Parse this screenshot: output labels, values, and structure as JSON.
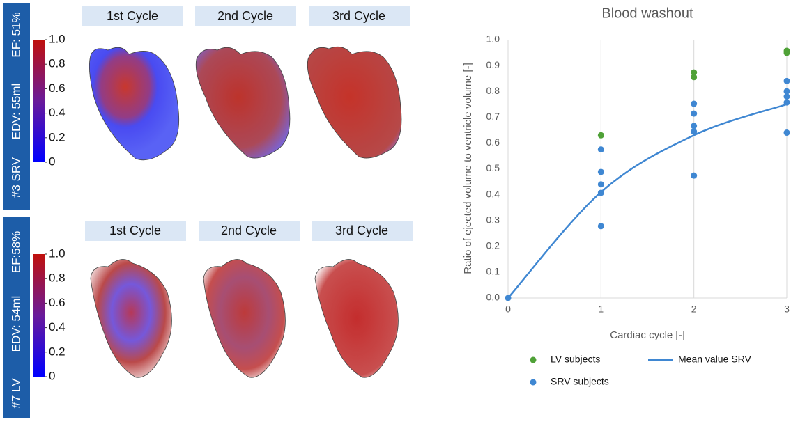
{
  "panels": [
    {
      "subject": "#3 SRV",
      "edv": "EDV: 55ml",
      "ef": "EF: 51%",
      "cycles": [
        "1st Cycle",
        "2nd Cycle",
        "3rd Cycle"
      ],
      "colorbar_ticks": [
        0,
        0.2,
        0.4,
        0.6,
        0.8,
        {
          "value": 1,
          "label": "1.0"
        }
      ]
    },
    {
      "subject": "#7 LV",
      "edv": "EDV: 54ml",
      "ef": "EF:58%",
      "cycles": [
        "1st Cycle",
        "2nd Cycle",
        "3rd Cycle"
      ],
      "colorbar_ticks": [
        0,
        0.2,
        0.4,
        0.6,
        0.8,
        {
          "value": 1,
          "label": "1.0"
        }
      ]
    }
  ],
  "chart_data": {
    "type": "scatter",
    "title": "Blood washout",
    "x_label": "Cardiac cycle [-]",
    "y_label": "Ratio of ejected volume to ventricle volume [-]",
    "xlim": [
      0,
      3
    ],
    "ylim": [
      0,
      1
    ],
    "xticks": [
      0,
      1,
      2,
      3
    ],
    "yticks": [
      {
        "value": 0,
        "label": "0.0"
      },
      0.1,
      0.2,
      0.3,
      0.4,
      0.5,
      0.6,
      0.7,
      0.8,
      0.9,
      {
        "value": 1,
        "label": "1.0"
      }
    ],
    "grid": "x",
    "series": [
      {
        "name": "LV subjects",
        "color": "#4fa137",
        "x": [
          1,
          2,
          2,
          3,
          3
        ],
        "values": [
          0.63,
          0.873,
          0.855,
          0.957,
          0.949
        ]
      },
      {
        "name": "SRV subjects",
        "color": "#3f87d2",
        "x": [
          0,
          1,
          1,
          1,
          1,
          1,
          2,
          2,
          2,
          2,
          2,
          3,
          3,
          3,
          3,
          3
        ],
        "values": [
          0,
          0.575,
          0.488,
          0.44,
          0.407,
          0.278,
          0.752,
          0.714,
          0.666,
          0.644,
          0.474,
          0.84,
          0.8,
          0.78,
          0.757,
          0.64
        ]
      },
      {
        "name": "Mean value SRV",
        "type": "line",
        "color": "#3f87d2",
        "x": [
          0,
          1,
          2,
          3
        ],
        "values": [
          0,
          0.41,
          0.63,
          0.75
        ]
      }
    ]
  }
}
